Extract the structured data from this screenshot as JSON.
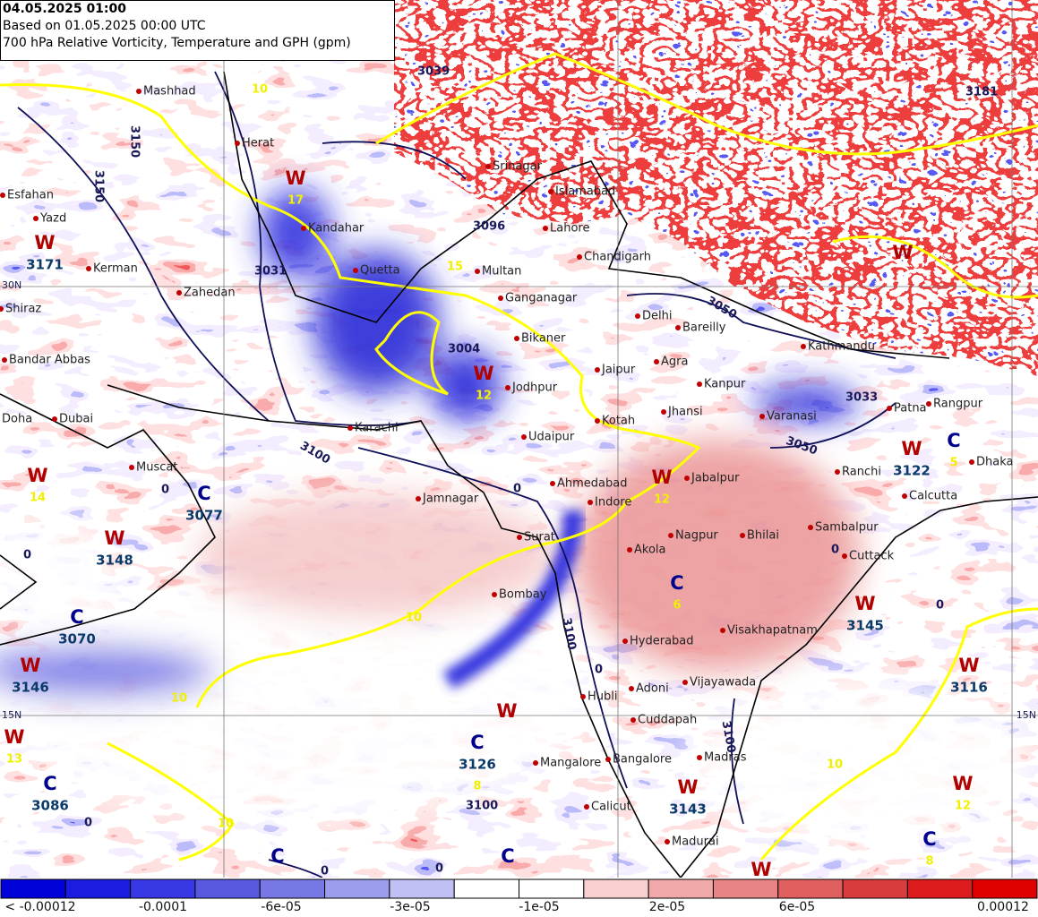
{
  "header": {
    "lines": [
      "04.05.2025 01:00",
      "Based on 01.05.2025 00:00 UTC",
      "700 hPa Relative Vorticity, Temperature and GPH (gpm)"
    ]
  },
  "cities": [
    "Mashhad",
    "Herat",
    "Esfahan",
    "Yazd",
    "Kerman",
    "Zahedan",
    "Shiraz",
    "Bandar Abbas",
    "Doha",
    "Dubai",
    "Muscat",
    "Kandahar",
    "Quetta",
    "Karachi",
    "Jamnagar",
    "Multan",
    "Lahore",
    "Chandigarh",
    "Ganganagar",
    "Delhi",
    "Bareilly",
    "Bikaner",
    "Jaipur",
    "Agra",
    "Jodhpur",
    "Kotah",
    "Jhansi",
    "Udaipur",
    "Ahmedabad",
    "Indore",
    "Jabalpur",
    "Varanasi",
    "Kathmandu",
    "Patna",
    "Rangpur",
    "Dhaka",
    "Ranchi",
    "Calcutta",
    "Sambalpur",
    "Cuttack",
    "Nagpur",
    "Bhilai",
    "Akola",
    "Bombay",
    "Hyderabad",
    "Visakhapatnam",
    "Adoni",
    "Vijayawada",
    "Hubli",
    "Cuddapah",
    "Mangalore",
    "Bangalore",
    "Madras",
    "Calicut",
    "Madurai",
    "Surat",
    "Srinagar",
    "Islamabad",
    "Kanpur"
  ],
  "markers": [
    {
      "letter": "W",
      "gph": 3171
    },
    {
      "letter": "W",
      "temp": 17
    },
    {
      "letter": "C",
      "gph": 3077
    },
    {
      "letter": "W",
      "gph": 3148
    },
    {
      "letter": "C",
      "gph": 3070
    },
    {
      "letter": "W",
      "gph": 3146
    },
    {
      "letter": "W",
      "temp": 13
    },
    {
      "letter": "C",
      "gph": 3086
    },
    {
      "letter": "W",
      "temp": 14
    },
    {
      "letter": "W",
      "temp": 12
    },
    {
      "letter": "C",
      "gph": 3126,
      "temp": 8
    },
    {
      "letter": "W"
    },
    {
      "letter": "W",
      "temp": 12
    },
    {
      "letter": "C",
      "temp": 6
    },
    {
      "letter": "W",
      "gph": 3143
    },
    {
      "letter": "W",
      "gph": 3145
    },
    {
      "letter": "W",
      "gph": 3116
    },
    {
      "letter": "W",
      "temp": 12
    },
    {
      "letter": "W",
      "gph": 3122
    },
    {
      "letter": "C",
      "temp": 5
    },
    {
      "letter": "C",
      "temp": 8
    },
    {
      "letter": "W"
    },
    {
      "letter": "C"
    },
    {
      "letter": "C"
    },
    {
      "letter": "W"
    }
  ],
  "gph_labels": [
    3039,
    3096,
    3031,
    3004,
    3033,
    3050,
    3100,
    3150,
    3181,
    3050,
    3100,
    3150,
    3100,
    3100
  ],
  "temp_labels": [
    10,
    10,
    10,
    10,
    15,
    10
  ],
  "vorticity_labels": [
    0,
    0,
    0,
    0,
    0,
    0,
    0,
    0,
    0
  ],
  "lat_labels": [
    "30N",
    "15N",
    "15N"
  ],
  "colorbar": {
    "labels": [
      "< -0.00012",
      "-0.0001",
      "-6e-05",
      "-3e-05",
      "-1e-05",
      "2e-05",
      "6e-05",
      "0.00012"
    ],
    "colors": [
      "#0000d8",
      "#1c1ce0",
      "#3838e4",
      "#5858e0",
      "#7878e4",
      "#9c9cec",
      "#c0c0f4",
      "#ffffff",
      "#ffffff",
      "#f8d0d0",
      "#f0a8a8",
      "#e88484",
      "#e06060",
      "#d83c3c",
      "#dc1c1c",
      "#e00000"
    ]
  }
}
